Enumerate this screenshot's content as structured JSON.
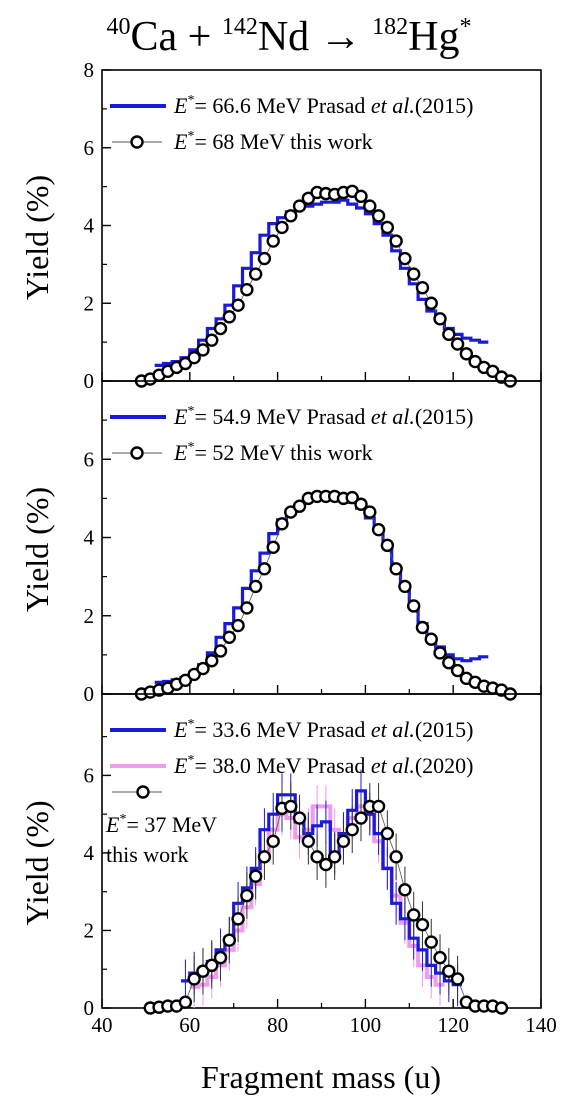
{
  "figure": {
    "title": {
      "A1": "40",
      "E1": "Ca + ",
      "A2": "142",
      "E2": "Nd → ",
      "A3": "182",
      "E3": "Hg",
      "star": "*"
    },
    "xlabel": "Fragment mass (u)"
  },
  "colors": {
    "prasad2015": "#1a1adc",
    "prasad2020": "#f09af0",
    "this_work": "#000000"
  },
  "chart_data": [
    {
      "type": "line",
      "panel": "top",
      "ylabel": "Yield (%)",
      "xlim": [
        40,
        140
      ],
      "ylim": [
        0,
        8
      ],
      "xticks": [],
      "yticks": [
        0,
        2,
        4,
        6,
        8
      ],
      "legend": [
        {
          "sym": "E",
          "sup": "*",
          "text": "= 66.6 MeV Prasad ",
          "italic": "et al.",
          "tail": "(2015)"
        },
        {
          "sym": "E",
          "sup": "*",
          "text": "= 68 MeV    this work",
          "italic": "",
          "tail": ""
        }
      ],
      "series": [
        {
          "name": "Prasad et al.(2015)",
          "style": "step",
          "color": "prasad2015",
          "x": [
            53,
            55,
            57,
            59,
            61,
            63,
            65,
            67,
            69,
            71,
            73,
            75,
            77,
            79,
            81,
            83,
            85,
            87,
            89,
            91,
            93,
            95,
            97,
            99,
            101,
            103,
            105,
            107,
            109,
            111,
            113,
            115,
            117,
            119,
            121,
            123,
            125,
            127
          ],
          "y": [
            0.4,
            0.45,
            0.5,
            0.6,
            0.8,
            1.05,
            1.35,
            1.6,
            1.95,
            2.45,
            2.9,
            3.3,
            3.75,
            4.05,
            4.2,
            4.35,
            4.45,
            4.5,
            4.55,
            4.6,
            4.6,
            4.65,
            4.55,
            4.45,
            4.3,
            4.05,
            3.75,
            3.35,
            2.9,
            2.5,
            2.1,
            1.8,
            1.55,
            1.35,
            1.2,
            1.1,
            1.05,
            1.0
          ]
        },
        {
          "name": "this work",
          "style": "circles",
          "color": "this_work",
          "x": [
            49,
            51,
            53,
            55,
            57,
            59,
            61,
            63,
            65,
            67,
            69,
            71,
            73,
            75,
            77,
            79,
            81,
            83,
            85,
            87,
            89,
            91,
            93,
            95,
            97,
            99,
            101,
            103,
            105,
            107,
            109,
            111,
            113,
            115,
            117,
            119,
            121,
            123,
            125,
            127,
            129,
            131,
            133
          ],
          "y": [
            0.0,
            0.05,
            0.15,
            0.25,
            0.35,
            0.45,
            0.6,
            0.8,
            1.05,
            1.35,
            1.65,
            1.95,
            2.35,
            2.75,
            3.15,
            3.6,
            3.95,
            4.25,
            4.5,
            4.7,
            4.85,
            4.82,
            4.8,
            4.85,
            4.88,
            4.75,
            4.5,
            4.25,
            3.95,
            3.6,
            3.15,
            2.75,
            2.4,
            2.0,
            1.6,
            1.2,
            0.95,
            0.7,
            0.5,
            0.35,
            0.25,
            0.1,
            0.0
          ]
        }
      ]
    },
    {
      "type": "line",
      "panel": "middle",
      "ylabel": "Yield (%)",
      "xlim": [
        40,
        140
      ],
      "ylim": [
        0,
        8
      ],
      "xticks": [],
      "yticks": [
        0,
        2,
        4,
        6
      ],
      "legend": [
        {
          "sym": "E",
          "sup": "*",
          "text": "= 54.9 MeV Prasad ",
          "italic": "et al.",
          "tail": "(2015)"
        },
        {
          "sym": "E",
          "sup": "*",
          "text": "= 52 MeV    this work",
          "italic": "",
          "tail": ""
        }
      ],
      "series": [
        {
          "name": "Prasad et al.(2015)",
          "style": "step",
          "color": "prasad2015",
          "x": [
            53,
            55,
            57,
            59,
            61,
            63,
            65,
            67,
            69,
            71,
            73,
            75,
            77,
            79,
            81,
            83,
            85,
            87,
            89,
            91,
            93,
            95,
            97,
            99,
            101,
            103,
            105,
            107,
            109,
            111,
            113,
            115,
            117,
            119,
            121,
            123,
            125,
            127
          ],
          "y": [
            0.3,
            0.32,
            0.36,
            0.42,
            0.55,
            0.75,
            1.05,
            1.45,
            1.8,
            2.2,
            2.7,
            3.15,
            3.6,
            4.1,
            4.45,
            4.7,
            4.85,
            4.95,
            5.0,
            5.0,
            5.0,
            4.95,
            4.9,
            4.75,
            4.5,
            4.2,
            3.75,
            3.2,
            2.8,
            2.3,
            1.8,
            1.45,
            1.2,
            1.0,
            0.9,
            0.85,
            0.9,
            0.95
          ]
        },
        {
          "name": "this work",
          "style": "circles",
          "color": "this_work",
          "x": [
            49,
            51,
            53,
            55,
            57,
            59,
            61,
            63,
            65,
            67,
            69,
            71,
            73,
            75,
            77,
            79,
            81,
            83,
            85,
            87,
            89,
            91,
            93,
            95,
            97,
            99,
            101,
            103,
            105,
            107,
            109,
            111,
            113,
            115,
            117,
            119,
            121,
            123,
            125,
            127,
            129,
            131,
            133
          ],
          "y": [
            0.0,
            0.05,
            0.1,
            0.15,
            0.25,
            0.35,
            0.5,
            0.65,
            0.85,
            1.1,
            1.45,
            1.75,
            2.2,
            2.75,
            3.2,
            3.75,
            4.35,
            4.65,
            4.8,
            5.0,
            5.05,
            5.05,
            5.05,
            5.0,
            5.02,
            4.85,
            4.65,
            4.2,
            3.8,
            3.2,
            2.75,
            2.25,
            1.7,
            1.4,
            1.05,
            0.8,
            0.6,
            0.4,
            0.3,
            0.2,
            0.15,
            0.1,
            0.0
          ]
        }
      ]
    },
    {
      "type": "line",
      "panel": "bottom",
      "ylabel": "Yield (%)",
      "xlabel": "Fragment mass (u)",
      "xlim": [
        40,
        140
      ],
      "ylim": [
        0,
        7
      ],
      "xticks": [
        40,
        60,
        80,
        100,
        120,
        140
      ],
      "yticks": [
        0,
        2,
        4,
        6
      ],
      "legend": [
        {
          "sym": "E",
          "sup": "*",
          "text": "= 33.6 MeV Prasad ",
          "italic": "et al.",
          "tail": "(2015)"
        },
        {
          "sym": "E",
          "sup": "*",
          "text": "= 38.0 MeV Prasad ",
          "italic": "et al.",
          "tail": "(2020)"
        }
      ],
      "this_work_label": {
        "sym": "E",
        "sup": "*",
        "line1": "= 37 MeV",
        "line2": "this work"
      },
      "series": [
        {
          "name": "Prasad et al.(2020)",
          "style": "step",
          "color": "prasad2020",
          "x": [
            61,
            63,
            65,
            67,
            69,
            71,
            73,
            75,
            77,
            79,
            81,
            83,
            85,
            87,
            89,
            91,
            93,
            95,
            97,
            99,
            101,
            103,
            105,
            107,
            109,
            111,
            113,
            115,
            117
          ],
          "y": [
            0.55,
            0.6,
            0.8,
            1.1,
            1.5,
            2.0,
            2.6,
            3.2,
            3.9,
            4.6,
            5.0,
            4.9,
            4.4,
            4.6,
            5.2,
            5.2,
            4.6,
            4.3,
            4.9,
            5.2,
            5.0,
            4.3,
            3.6,
            2.9,
            2.2,
            1.6,
            1.1,
            0.8,
            0.6
          ]
        },
        {
          "name": "Prasad et al.(2015)",
          "style": "step",
          "color": "prasad2015",
          "x": [
            59,
            61,
            63,
            65,
            67,
            69,
            71,
            73,
            75,
            77,
            79,
            81,
            83,
            85,
            87,
            89,
            91,
            93,
            95,
            97,
            99,
            101,
            103,
            105,
            107,
            109,
            111,
            113,
            115,
            117,
            119,
            121
          ],
          "y": [
            0.7,
            0.9,
            1.0,
            1.2,
            1.5,
            1.8,
            2.7,
            3.1,
            3.6,
            4.6,
            5.0,
            5.5,
            5.5,
            4.8,
            4.5,
            4.7,
            4.8,
            4.0,
            4.5,
            5.1,
            5.6,
            5.0,
            4.5,
            3.6,
            2.7,
            2.3,
            1.8,
            1.5,
            1.1,
            0.9,
            0.7,
            0.6
          ]
        },
        {
          "name": "this work",
          "style": "circles",
          "color": "this_work",
          "x": [
            51,
            53,
            55,
            57,
            59,
            61,
            63,
            65,
            67,
            69,
            71,
            73,
            75,
            77,
            79,
            81,
            83,
            85,
            87,
            89,
            91,
            93,
            95,
            97,
            99,
            101,
            103,
            105,
            107,
            109,
            111,
            113,
            115,
            117,
            119,
            121,
            123,
            125,
            127,
            129,
            131
          ],
          "y": [
            0.0,
            0.02,
            0.05,
            0.05,
            0.15,
            0.75,
            0.95,
            1.1,
            1.3,
            1.75,
            2.3,
            2.9,
            3.4,
            3.9,
            4.3,
            5.15,
            5.2,
            4.9,
            4.3,
            3.9,
            3.7,
            3.9,
            4.3,
            4.6,
            4.9,
            5.2,
            5.2,
            4.5,
            3.9,
            3.05,
            2.4,
            2.15,
            1.7,
            1.3,
            0.95,
            0.75,
            0.15,
            0.05,
            0.05,
            0.05,
            0.0
          ]
        }
      ]
    }
  ]
}
